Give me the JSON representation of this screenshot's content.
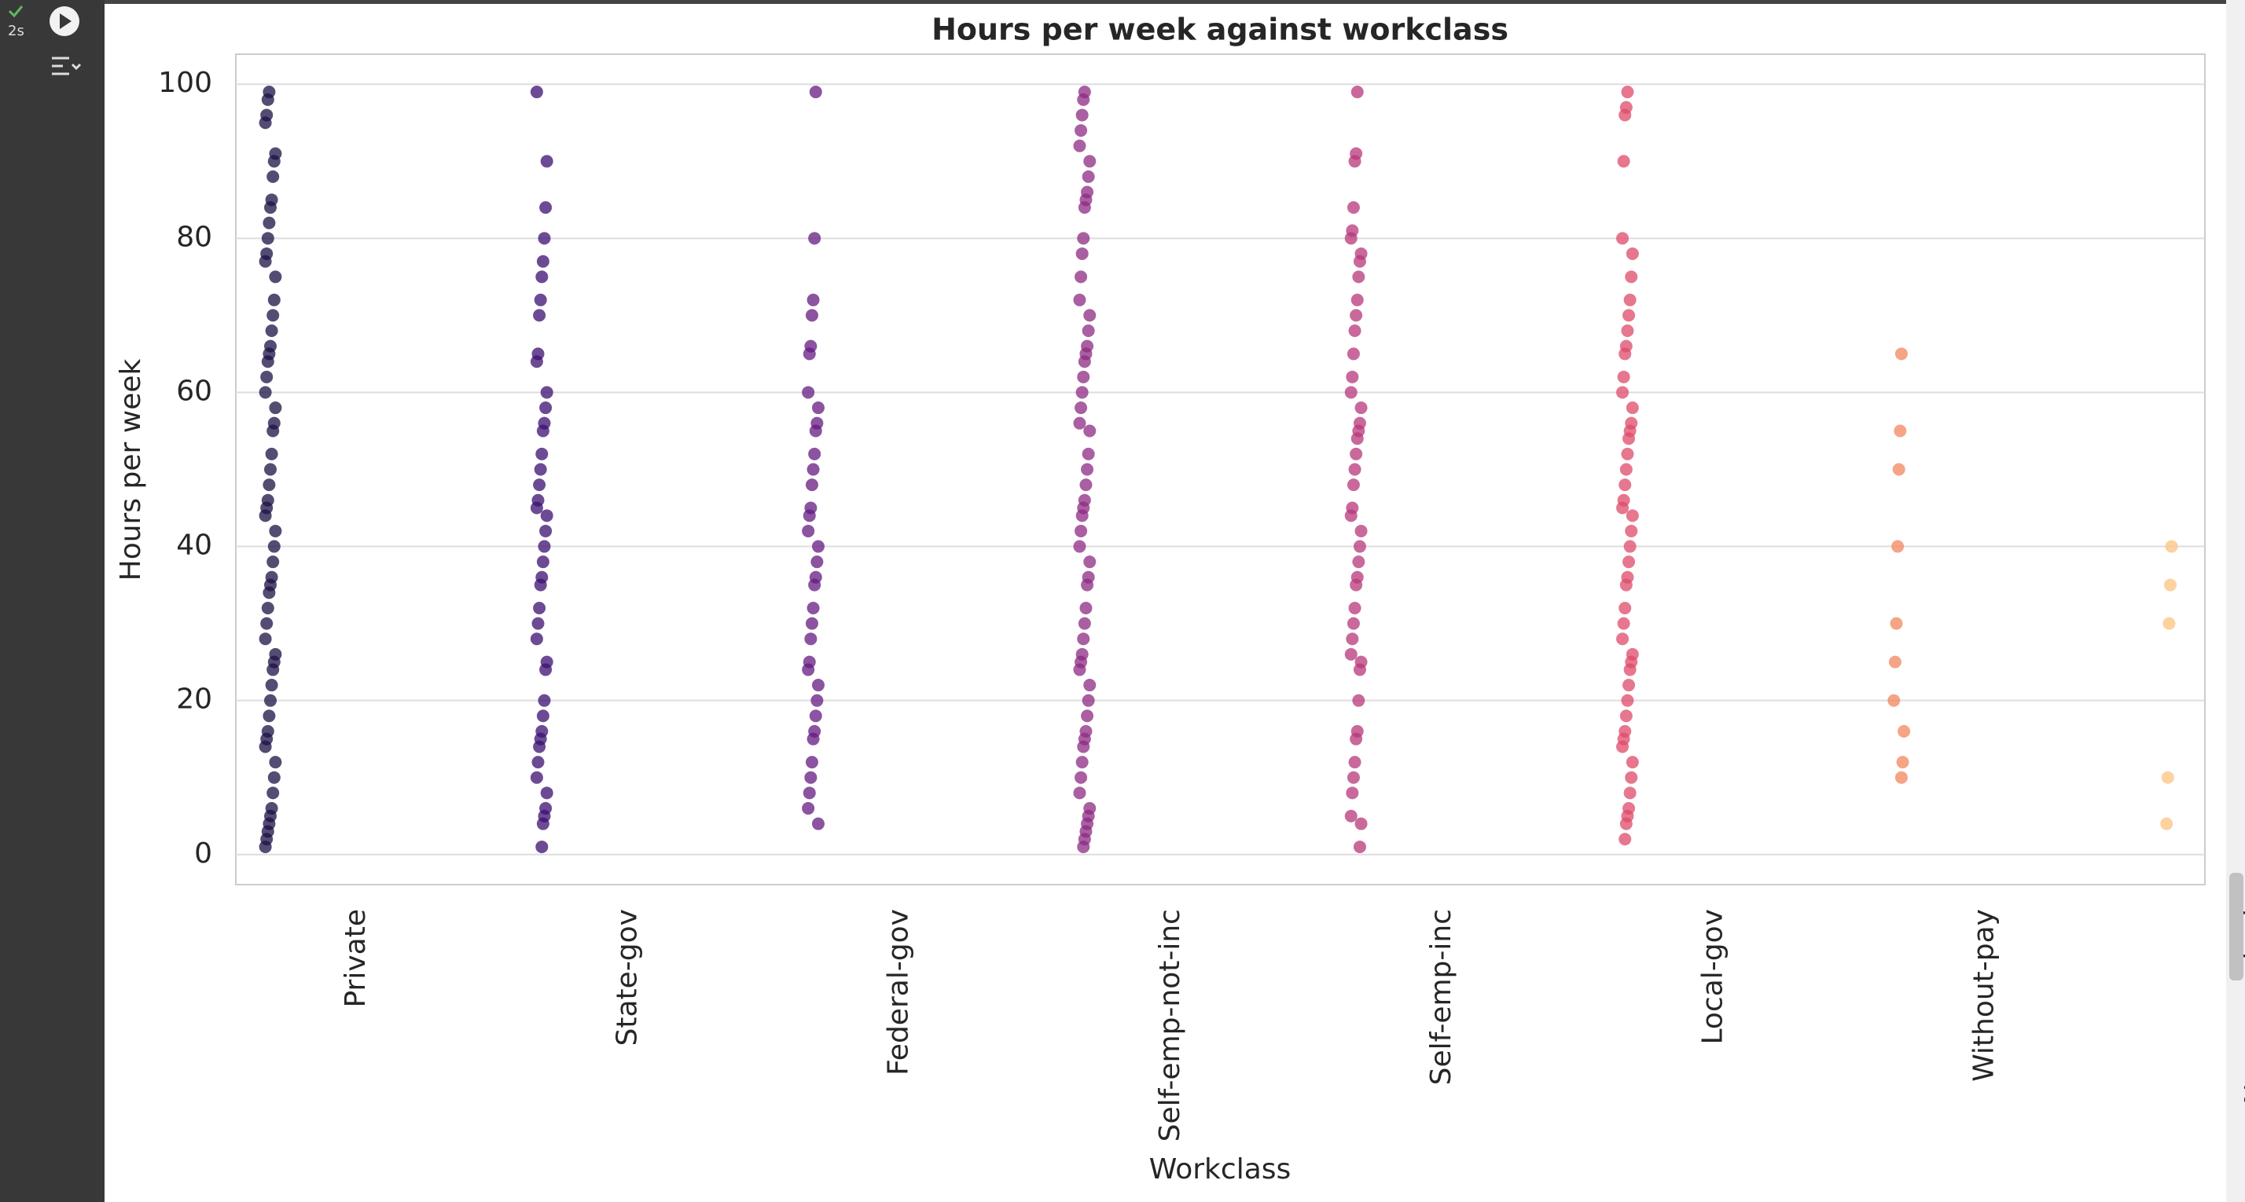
{
  "ui": {
    "run_time": "2s"
  },
  "chart_data": {
    "type": "strip",
    "title": "Hours per week against workclass",
    "xlabel": "Workclass",
    "ylabel": "Hours per week",
    "categories": [
      "Private",
      "State-gov",
      "Federal-gov",
      "Self-emp-not-inc",
      "Self-emp-inc",
      "Local-gov",
      "Without-pay",
      "Never-worked"
    ],
    "colors": [
      "#1c1044",
      "#3b0f70",
      "#641a80",
      "#8c2981",
      "#b73779",
      "#de4968",
      "#f1865e",
      "#fcc37f"
    ],
    "values": [
      [
        1,
        2,
        3,
        4,
        5,
        6,
        8,
        10,
        12,
        14,
        15,
        16,
        18,
        20,
        22,
        24,
        25,
        26,
        28,
        30,
        32,
        34,
        35,
        36,
        38,
        40,
        42,
        44,
        45,
        46,
        48,
        50,
        52,
        55,
        56,
        58,
        60,
        62,
        64,
        65,
        66,
        68,
        70,
        72,
        75,
        77,
        78,
        80,
        82,
        84,
        85,
        88,
        90,
        91,
        95,
        96,
        98,
        99
      ],
      [
        1,
        4,
        5,
        6,
        8,
        10,
        12,
        14,
        15,
        16,
        18,
        20,
        24,
        25,
        28,
        30,
        32,
        35,
        36,
        38,
        40,
        42,
        44,
        45,
        46,
        48,
        50,
        52,
        55,
        56,
        58,
        60,
        64,
        65,
        70,
        72,
        75,
        77,
        80,
        84,
        90,
        99
      ],
      [
        4,
        6,
        8,
        10,
        12,
        15,
        16,
        18,
        20,
        22,
        24,
        25,
        28,
        30,
        32,
        35,
        36,
        38,
        40,
        42,
        44,
        45,
        48,
        50,
        52,
        55,
        56,
        58,
        60,
        65,
        66,
        70,
        72,
        80,
        99
      ],
      [
        1,
        2,
        3,
        4,
        5,
        6,
        8,
        10,
        12,
        14,
        15,
        16,
        18,
        20,
        22,
        24,
        25,
        26,
        28,
        30,
        32,
        35,
        36,
        38,
        40,
        42,
        44,
        45,
        46,
        48,
        50,
        52,
        55,
        56,
        58,
        60,
        62,
        64,
        65,
        66,
        68,
        70,
        72,
        75,
        78,
        80,
        84,
        85,
        86,
        88,
        90,
        92,
        94,
        96,
        98,
        99
      ],
      [
        1,
        4,
        5,
        8,
        10,
        12,
        15,
        16,
        20,
        24,
        25,
        26,
        28,
        30,
        32,
        35,
        36,
        38,
        40,
        42,
        44,
        45,
        48,
        50,
        52,
        54,
        55,
        56,
        58,
        60,
        62,
        65,
        68,
        70,
        72,
        75,
        77,
        78,
        80,
        81,
        84,
        90,
        91,
        99
      ],
      [
        2,
        4,
        5,
        6,
        8,
        10,
        12,
        14,
        15,
        16,
        18,
        20,
        22,
        24,
        25,
        26,
        28,
        30,
        32,
        35,
        36,
        38,
        40,
        42,
        44,
        45,
        46,
        48,
        50,
        52,
        54,
        55,
        56,
        58,
        60,
        62,
        65,
        66,
        68,
        70,
        72,
        75,
        78,
        80,
        90,
        96,
        97,
        99
      ],
      [
        10,
        12,
        16,
        20,
        25,
        30,
        40,
        50,
        55,
        65
      ],
      [
        4,
        10,
        30,
        35,
        40
      ]
    ],
    "ylim": [
      -3.9,
      103.9
    ],
    "yticks": [
      0,
      20,
      40,
      60,
      80,
      100
    ],
    "grid": true
  }
}
